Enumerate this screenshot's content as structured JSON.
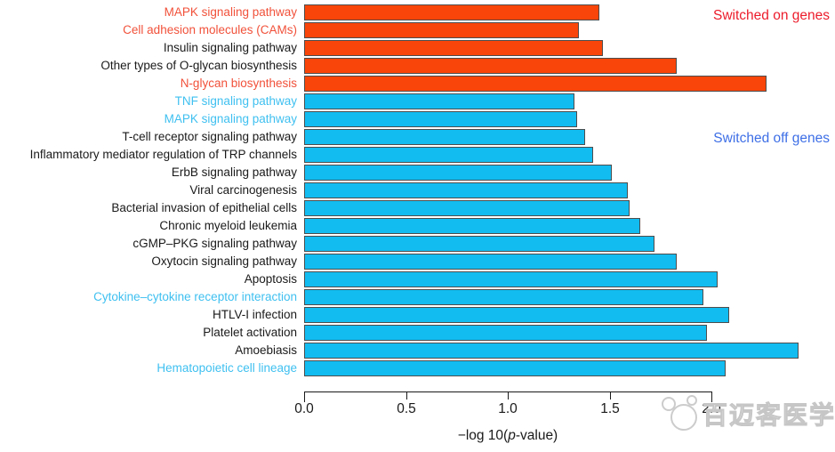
{
  "colors": {
    "bar_on": "#F94509",
    "bar_off": "#12BCF0",
    "bar_border": "#4D4D4D",
    "label_red": "#F1513A",
    "label_cyan": "#3FC0F0",
    "label_black": "#1A1A1A",
    "legend_on": "#EC1C2B",
    "legend_off": "#3E6FE6",
    "watermark_gray": "#C6C6C6"
  },
  "axis": {
    "label_plain": "−log10(p-value)",
    "label_parts": {
      "prefix": "−log 10(",
      "italic": "p",
      "suffix": "-value)"
    },
    "tick_labels": [
      "0.0",
      "0.5",
      "1.0",
      "1.5",
      "2.0"
    ]
  },
  "watermark": {
    "text": "百迈客医学",
    "logo": "panda-logo"
  },
  "chart_data": {
    "type": "bar",
    "orientation": "horizontal",
    "title": "",
    "xlabel": "-log10(p-value)",
    "ylabel": "",
    "xlim": [
      0,
      2.0
    ],
    "x_ticks": [
      0,
      0.5,
      1.0,
      1.5,
      2.0
    ],
    "grid": false,
    "legend_position": "in-plot right",
    "annotations": [
      {
        "text": "Switched on genes",
        "color": "#EC1C2B"
      },
      {
        "text": "Switched off genes",
        "color": "#3E6FE6"
      }
    ],
    "series": [
      {
        "name": "Switched on genes",
        "color": "#F94509"
      },
      {
        "name": "Switched off genes",
        "color": "#12BCF0"
      }
    ],
    "rows": [
      {
        "category": "MAPK signaling pathway",
        "value": 1.44,
        "group": "on",
        "label_color": "red"
      },
      {
        "category": "Cell adhesion molecules (CAMs)",
        "value": 1.34,
        "group": "on",
        "label_color": "red"
      },
      {
        "category": "Insulin signaling pathway",
        "value": 1.46,
        "group": "on",
        "label_color": "black"
      },
      {
        "category": "Other types of O-glycan biosynthesis",
        "value": 1.82,
        "group": "on",
        "label_color": "black"
      },
      {
        "category": "N-glycan biosynthesis",
        "value": 2.26,
        "group": "on",
        "label_color": "red"
      },
      {
        "category": "TNF signaling pathway",
        "value": 1.32,
        "group": "off",
        "label_color": "cyan"
      },
      {
        "category": "MAPK signaling pathway",
        "value": 1.33,
        "group": "off",
        "label_color": "cyan"
      },
      {
        "category": "T-cell receptor signaling pathway",
        "value": 1.37,
        "group": "off",
        "label_color": "black"
      },
      {
        "category": "Inflammatory mediator regulation of TRP channels",
        "value": 1.41,
        "group": "off",
        "label_color": "black"
      },
      {
        "category": "ErbB signaling pathway",
        "value": 1.5,
        "group": "off",
        "label_color": "black"
      },
      {
        "category": "Viral carcinogenesis",
        "value": 1.58,
        "group": "off",
        "label_color": "black"
      },
      {
        "category": "Bacterial invasion of epithelial cells",
        "value": 1.59,
        "group": "off",
        "label_color": "black"
      },
      {
        "category": "Chronic myeloid leukemia",
        "value": 1.64,
        "group": "off",
        "label_color": "black"
      },
      {
        "category": "cGMP–PKG signaling pathway",
        "value": 1.71,
        "group": "off",
        "label_color": "black"
      },
      {
        "category": "Oxytocin signaling pathway",
        "value": 1.82,
        "group": "off",
        "label_color": "black"
      },
      {
        "category": "Apoptosis",
        "value": 2.02,
        "group": "off",
        "label_color": "black"
      },
      {
        "category": "Cytokine–cytokine receptor interaction",
        "value": 1.95,
        "group": "off",
        "label_color": "cyan"
      },
      {
        "category": "HTLV-I infection",
        "value": 2.08,
        "group": "off",
        "label_color": "black"
      },
      {
        "category": "Platelet activation",
        "value": 1.97,
        "group": "off",
        "label_color": "black"
      },
      {
        "category": "Amoebiasis",
        "value": 2.42,
        "group": "off",
        "label_color": "black"
      },
      {
        "category": "Hematopoietic cell lineage",
        "value": 2.06,
        "group": "off",
        "label_color": "cyan"
      }
    ]
  }
}
